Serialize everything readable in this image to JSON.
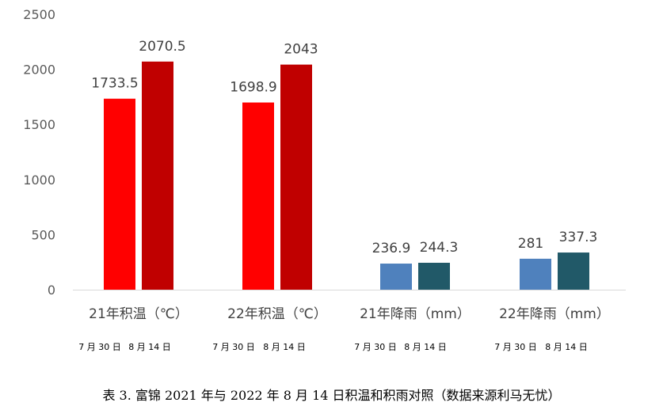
{
  "chart_data": {
    "type": "bar",
    "categories": [
      "21年积温（℃）",
      "22年积温（℃）",
      "21年降雨（mm）",
      "22年降雨（mm）"
    ],
    "series": [
      {
        "name": "7 月 30 日",
        "values": [
          1733.5,
          1698.9,
          236.9,
          281
        ]
      },
      {
        "name": "8 月 14 日",
        "values": [
          2070.5,
          2043,
          244.3,
          337.3
        ]
      }
    ],
    "data_labels": [
      [
        "1733.5",
        "2070.5"
      ],
      [
        "1698.9",
        "2043"
      ],
      [
        "236.9",
        "244.3"
      ],
      [
        "281",
        "337.3"
      ]
    ],
    "sub_labels": [
      "7 月 30 日",
      "8 月 14 日"
    ],
    "yticks": [
      "0",
      "500",
      "1000",
      "1500",
      "2000",
      "2500"
    ],
    "ylim": [
      0,
      2500
    ],
    "colors": [
      [
        "#ff0000",
        "#c00000"
      ],
      [
        "#ff0000",
        "#c00000"
      ],
      [
        "#4f81bd",
        "#215968"
      ],
      [
        "#4f81bd",
        "#215968"
      ]
    ]
  },
  "caption": "表 3. 富锦 2021 年与 2022 年 8 月 14 日积温和积雨对照（数据来源利马无忧）"
}
